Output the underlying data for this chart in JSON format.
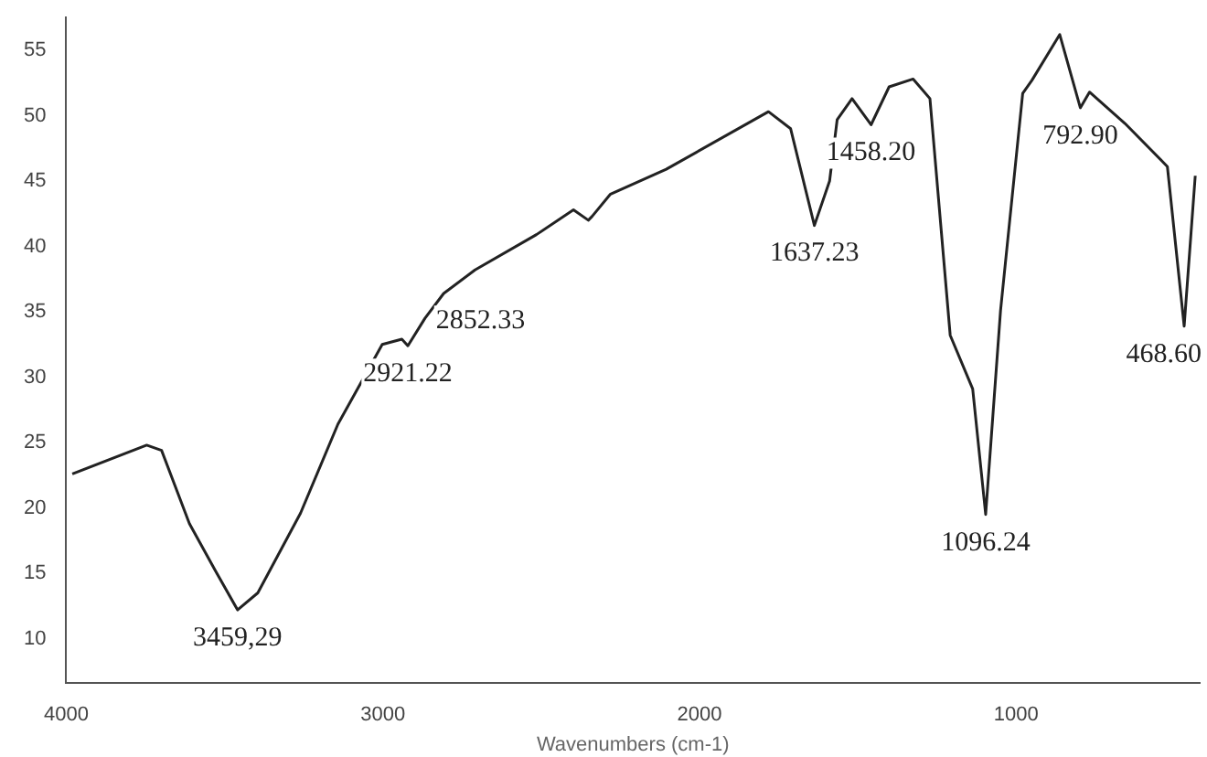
{
  "chart_data": {
    "type": "line",
    "xlabel": "Wavenumbers (cm-1)",
    "xlim": [
      4000,
      420
    ],
    "xticks": [
      4000,
      3000,
      2000,
      1000
    ],
    "ylim": [
      6.6,
      57.5
    ],
    "yticks": [
      10,
      15,
      20,
      25,
      30,
      35,
      40,
      45,
      50,
      55
    ],
    "grid": false,
    "legend": false,
    "marker": "none",
    "line_style": "solid",
    "series": [
      {
        "color": "#222222",
        "x": [
          3981,
          3746,
          3699,
          3611,
          3529,
          3459,
          3395,
          3260,
          3142,
          3002,
          2940,
          2921,
          2867,
          2808,
          2709,
          2515,
          2398,
          2351,
          2339,
          2281,
          2105,
          1782,
          1712,
          1637,
          1589,
          1565,
          1518,
          1458,
          1401,
          1325,
          1272,
          1208,
          1137,
          1096,
          1049,
          979,
          950,
          862,
          797,
          768,
          656,
          522,
          469,
          434
        ],
        "values": [
          22.6,
          24.8,
          24.4,
          18.8,
          15.2,
          12.2,
          13.5,
          19.6,
          26.4,
          32.5,
          32.9,
          32.4,
          34.5,
          36.4,
          38.2,
          40.9,
          42.8,
          42.0,
          42.3,
          44.0,
          45.9,
          50.3,
          49.0,
          41.6,
          45.0,
          49.7,
          51.3,
          49.3,
          52.2,
          52.8,
          51.3,
          33.2,
          29.1,
          19.5,
          35.1,
          51.7,
          52.7,
          56.2,
          50.6,
          51.8,
          49.4,
          46.1,
          33.9,
          45.4
        ]
      }
    ],
    "annotations": [
      {
        "text": "3459,29",
        "x": 3459,
        "y": 12.2
      },
      {
        "text": "2921.22",
        "x": 2921,
        "y": 32.4
      },
      {
        "text": "2852.33",
        "x": 2867,
        "y": 34.5
      },
      {
        "text": "1637.23",
        "x": 1637,
        "y": 41.6
      },
      {
        "text": "1458.20",
        "x": 1458,
        "y": 49.3
      },
      {
        "text": "1096.24",
        "x": 1096,
        "y": 19.5
      },
      {
        "text": "792.90",
        "x": 797,
        "y": 50.6
      },
      {
        "text": "468.60",
        "x": 469,
        "y": 33.9
      }
    ]
  }
}
